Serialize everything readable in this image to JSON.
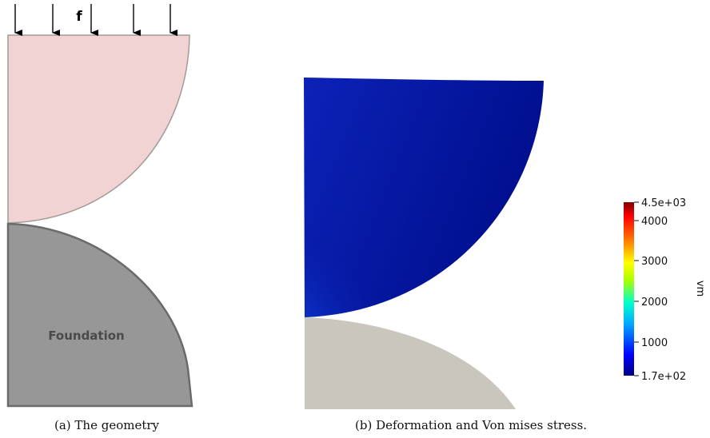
{
  "geometry": {
    "force_label": "f",
    "foundation_label": "Foundation",
    "colors": {
      "upper_body": "#f2d3d3",
      "foundation": "#979797",
      "outline": "#6b6b6b"
    }
  },
  "stress_plot": {
    "colorbar": {
      "title": "vm",
      "max_label": "4.5e+03",
      "min_label": "1.7e+02",
      "ticks": [
        "4000",
        "3000",
        "2000",
        "1000"
      ],
      "min": 170,
      "max": 4500
    },
    "colors": {
      "deformed_body": "#0a1fa8",
      "foundation": "#c9c6be"
    }
  },
  "captions": {
    "a": "(a) The geometry",
    "b": "(b) Deformation and Von mises stress."
  }
}
